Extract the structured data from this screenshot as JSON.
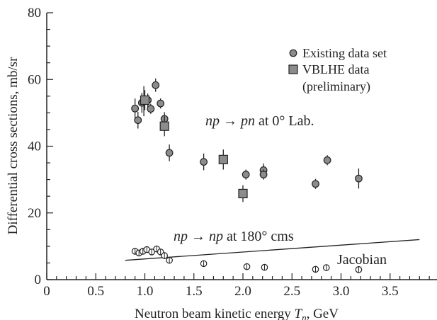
{
  "chart_data": {
    "type": "scatter",
    "title": "",
    "xlabel": "Neutron beam kinetic energy Tₙ, GeV",
    "xlabel_main": "Neutron beam kinetic energy ",
    "xlabel_var": "T",
    "xlabel_sub": "n",
    "xlabel_unit": ", GeV",
    "ylabel": "Differential cross sections, mb/sr",
    "xlim": [
      0,
      4.0
    ],
    "ylim": [
      0,
      80
    ],
    "xticks": [
      0,
      0.5,
      1.0,
      1.5,
      2.0,
      2.5,
      3.0,
      3.5
    ],
    "xtick_labels": [
      "0",
      "0.5",
      "1.0",
      "1.5",
      "2.0",
      "2.5",
      "3.0",
      "3.5"
    ],
    "yticks": [
      0,
      20,
      40,
      60,
      80
    ],
    "ytick_labels": [
      "0",
      "20",
      "40",
      "60",
      "80"
    ],
    "grid": false,
    "legend": {
      "position": "top-right",
      "entries": [
        {
          "label": "Existing data set",
          "marker": "circle"
        },
        {
          "label": "VBLHE data",
          "label2": "(preliminary)",
          "marker": "square"
        }
      ]
    },
    "series": [
      {
        "name": "Existing data set",
        "marker": "circle",
        "points": [
          {
            "x": 0.9,
            "y": 51.3,
            "err": 3.0
          },
          {
            "x": 0.93,
            "y": 47.8,
            "err": 2.5
          },
          {
            "x": 0.97,
            "y": 53.0,
            "err": 3.0
          },
          {
            "x": 0.99,
            "y": 53.5,
            "err": 4.5
          },
          {
            "x": 1.03,
            "y": 53.8,
            "err": 2.0
          },
          {
            "x": 1.06,
            "y": 51.2,
            "err": 1.5
          },
          {
            "x": 1.11,
            "y": 58.3,
            "err": 2.0
          },
          {
            "x": 1.16,
            "y": 52.8,
            "err": 1.5
          },
          {
            "x": 1.2,
            "y": 48.2,
            "err": 2.0
          },
          {
            "x": 1.25,
            "y": 38.0,
            "err": 2.5
          },
          {
            "x": 1.6,
            "y": 35.3,
            "err": 2.5
          },
          {
            "x": 2.03,
            "y": 31.5,
            "err": 1.5
          },
          {
            "x": 2.21,
            "y": 32.8,
            "err": 2.0
          },
          {
            "x": 2.21,
            "y": 31.5,
            "err": 1.5
          },
          {
            "x": 2.74,
            "y": 28.7,
            "err": 1.5
          },
          {
            "x": 2.86,
            "y": 35.8,
            "err": 1.5
          },
          {
            "x": 3.18,
            "y": 30.3,
            "err": 3.0
          }
        ]
      },
      {
        "name": "VBLHE data (preliminary)",
        "marker": "square",
        "points": [
          {
            "x": 1.0,
            "y": 53.8,
            "err": 3.0
          },
          {
            "x": 1.2,
            "y": 46.0,
            "err": 3.0
          },
          {
            "x": 1.8,
            "y": 36.0,
            "err": 3.0
          },
          {
            "x": 2.0,
            "y": 25.8,
            "err": 2.5
          }
        ]
      },
      {
        "name": "",
        "marker": "open-circle",
        "points": [
          {
            "x": 0.9,
            "y": 8.5
          },
          {
            "x": 0.94,
            "y": 8.0
          },
          {
            "x": 0.98,
            "y": 8.5
          },
          {
            "x": 1.02,
            "y": 9.0
          },
          {
            "x": 1.07,
            "y": 8.3
          },
          {
            "x": 1.12,
            "y": 9.2
          },
          {
            "x": 1.16,
            "y": 8.3
          },
          {
            "x": 1.2,
            "y": 7.2
          },
          {
            "x": 1.25,
            "y": 5.8
          },
          {
            "x": 1.6,
            "y": 4.8
          },
          {
            "x": 2.04,
            "y": 3.9
          },
          {
            "x": 2.22,
            "y": 3.7
          },
          {
            "x": 2.74,
            "y": 3.1
          },
          {
            "x": 2.85,
            "y": 3.6
          },
          {
            "x": 3.18,
            "y": 3.0
          }
        ]
      }
    ],
    "lines": [
      {
        "name": "",
        "x": [
          0.8,
          3.8
        ],
        "y": [
          5.8,
          12.0
        ]
      }
    ],
    "annotations": {
      "np_pn": {
        "pre": "np → pn",
        "post": " at 0° Lab."
      },
      "np_np": {
        "pre": "np → np",
        "post": " at 180° cms"
      },
      "jacobian": "Jacobian"
    }
  }
}
